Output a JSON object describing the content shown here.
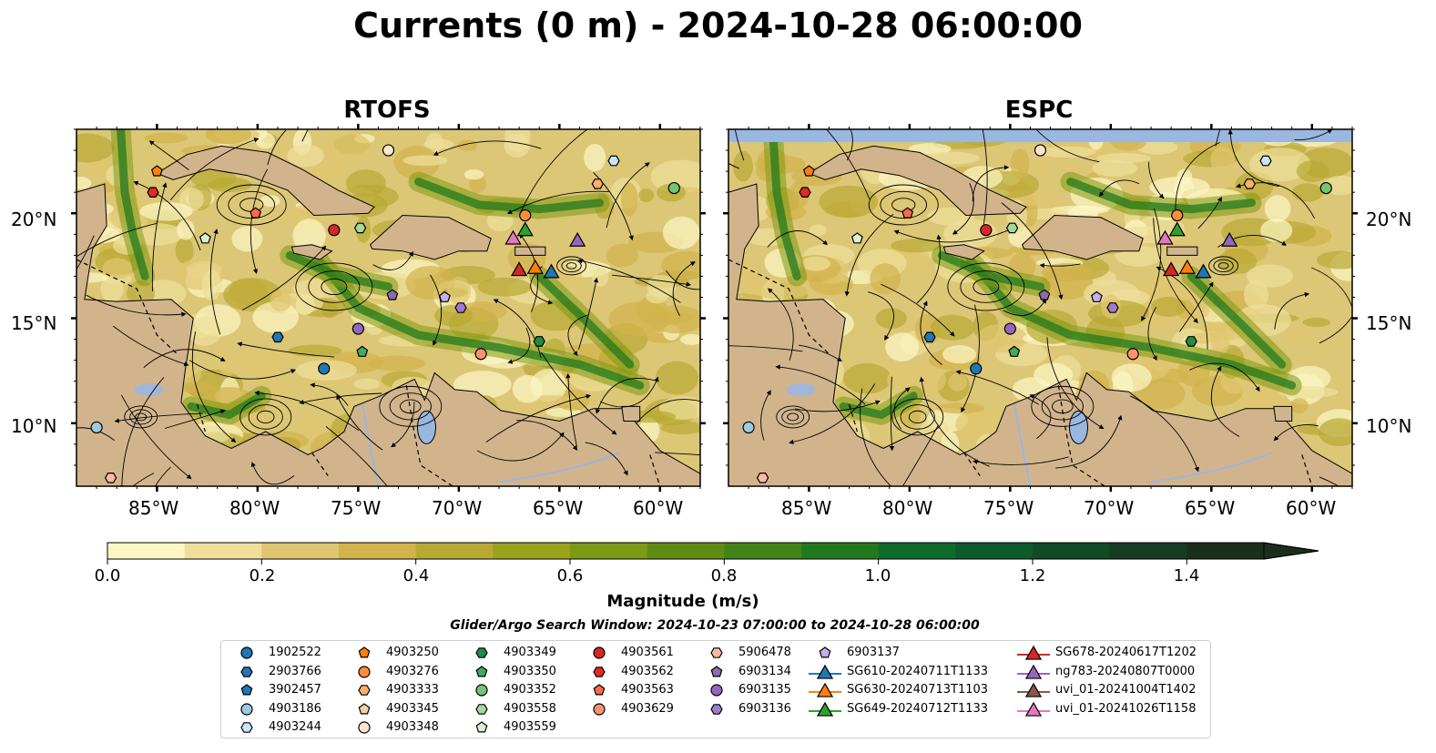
{
  "title": "Currents (0 m) - 2024-10-28 06:00:00",
  "panels": [
    {
      "name": "RTOFS"
    },
    {
      "name": "ESPC"
    }
  ],
  "lat_labels": [
    "20°N",
    "15°N",
    "10°N"
  ],
  "lon_labels": [
    "85°W",
    "80°W",
    "75°W",
    "70°W",
    "65°W",
    "60°W"
  ],
  "colorbar": {
    "label": "Magnitude (m/s)",
    "ticks": [
      "0.0",
      "0.2",
      "0.4",
      "0.6",
      "0.8",
      "1.0",
      "1.2",
      "1.4"
    ],
    "colors": [
      "#fcf6c4",
      "#eee09a",
      "#dfc66f",
      "#d2b34c",
      "#b8a934",
      "#9aa31c",
      "#7e9913",
      "#5f8d13",
      "#418417",
      "#237a1d",
      "#0e6b2b",
      "#0b5a2a",
      "#0f4b25",
      "#163b21",
      "#1b2e1c"
    ]
  },
  "search_window": "Glider/Argo Search Window: 2024-10-23 07:00:00 to 2024-10-28 06:00:00",
  "colors": {
    "land": "#d2b48c",
    "water": "#9ab7e0",
    "ocean_base": "#dcc777"
  },
  "legend": [
    {
      "label": "1902522",
      "marker": "circle",
      "color": "#1f77b4"
    },
    {
      "label": "2903766",
      "marker": "hexagon",
      "color": "#1f77b4"
    },
    {
      "label": "3902457",
      "marker": "pentagon",
      "color": "#1f77b4"
    },
    {
      "label": "4903186",
      "marker": "circle",
      "color": "#9ecae1"
    },
    {
      "label": "4903244",
      "marker": "hexagon",
      "color": "#c6e7fb"
    },
    {
      "label": "4903250",
      "marker": "pentagon",
      "color": "#ff7f0e"
    },
    {
      "label": "4903276",
      "marker": "circle",
      "color": "#fd8d3c"
    },
    {
      "label": "4903333",
      "marker": "hexagon",
      "color": "#fdae6b"
    },
    {
      "label": "4903345",
      "marker": "pentagon",
      "color": "#fdd0a2"
    },
    {
      "label": "4903348",
      "marker": "circle",
      "color": "#fee6ce"
    },
    {
      "label": "4903349",
      "marker": "hexagon",
      "color": "#238b45"
    },
    {
      "label": "4903350",
      "marker": "pentagon",
      "color": "#41ab5d"
    },
    {
      "label": "4903352",
      "marker": "circle",
      "color": "#74c476"
    },
    {
      "label": "4903558",
      "marker": "hexagon",
      "color": "#a1d99b"
    },
    {
      "label": "4903559",
      "marker": "pentagon",
      "color": "#d9f0d3"
    },
    {
      "label": "4903561",
      "marker": "circle",
      "color": "#d62728"
    },
    {
      "label": "4903562",
      "marker": "hexagon",
      "color": "#de2d26"
    },
    {
      "label": "4903563",
      "marker": "pentagon",
      "color": "#fb6a4a"
    },
    {
      "label": "4903629",
      "marker": "circle",
      "color": "#fc9272"
    },
    {
      "label": "5906478",
      "marker": "hexagon",
      "color": "#fcbba1"
    },
    {
      "label": "6903134",
      "marker": "pentagon",
      "color": "#8c6bb1"
    },
    {
      "label": "6903135",
      "marker": "circle",
      "color": "#9467bd"
    },
    {
      "label": "6903136",
      "marker": "hexagon",
      "color": "#9e7cd2"
    },
    {
      "label": "6903137",
      "marker": "pentagon",
      "color": "#c5b0ed"
    },
    {
      "label": "SG610-20240711T1133",
      "marker": "triangle-line",
      "color": "#1f77b4"
    },
    {
      "label": "SG630-20240713T1103",
      "marker": "triangle-line",
      "color": "#ff7f0e"
    },
    {
      "label": "SG649-20240712T1133",
      "marker": "triangle-line",
      "color": "#2ca02c"
    },
    {
      "label": "SG678-20240617T1202",
      "marker": "triangle-line",
      "color": "#d62728"
    },
    {
      "label": "ng783-20240807T0000",
      "marker": "triangle-line",
      "color": "#9467bd"
    },
    {
      "label": "uvi_01-20241004T1402",
      "marker": "triangle-line",
      "color": "#8c564b"
    },
    {
      "label": "uvi_01-20241026T1158",
      "marker": "triangle-line",
      "color": "#e377c2"
    }
  ],
  "map_extent": {
    "lon_min": -89,
    "lon_max": -58,
    "lat_min": 7,
    "lat_max": 24
  },
  "platforms": [
    {
      "id": "1902522",
      "lon": -76.7,
      "lat": 12.6
    },
    {
      "id": "2903766",
      "lon": -79.0,
      "lat": 14.1
    },
    {
      "id": "4903186",
      "lon": -88.0,
      "lat": 9.8
    },
    {
      "id": "4903244",
      "lon": -62.3,
      "lat": 22.5
    },
    {
      "id": "4903250",
      "lon": -85.0,
      "lat": 22.0
    },
    {
      "id": "4903276",
      "lon": -66.7,
      "lat": 19.9
    },
    {
      "id": "4903333",
      "lon": -63.1,
      "lat": 21.4
    },
    {
      "id": "4903348",
      "lon": -73.5,
      "lat": 23.0
    },
    {
      "id": "4903349",
      "lon": -66.0,
      "lat": 13.9
    },
    {
      "id": "4903350",
      "lon": -74.8,
      "lat": 13.4
    },
    {
      "id": "4903352",
      "lon": -59.3,
      "lat": 21.2
    },
    {
      "id": "4903558",
      "lon": -74.9,
      "lat": 19.3
    },
    {
      "id": "4903559",
      "lon": -82.6,
      "lat": 18.8
    },
    {
      "id": "4903561",
      "lon": -76.2,
      "lat": 19.2
    },
    {
      "id": "4903562",
      "lon": -85.2,
      "lat": 21.0
    },
    {
      "id": "4903563",
      "lon": -80.1,
      "lat": 20.0
    },
    {
      "id": "4903629",
      "lon": -68.9,
      "lat": 13.3
    },
    {
      "id": "5906478",
      "lon": -87.3,
      "lat": 7.4
    },
    {
      "id": "6903134",
      "lon": -73.3,
      "lat": 16.1
    },
    {
      "id": "6903135",
      "lon": -75.0,
      "lat": 14.5
    },
    {
      "id": "6903136",
      "lon": -69.9,
      "lat": 15.5
    },
    {
      "id": "6903137",
      "lon": -70.7,
      "lat": 16.0
    },
    {
      "id": "SG610-20240711T1133",
      "lon": -65.4,
      "lat": 17.2
    },
    {
      "id": "SG630-20240713T1103",
      "lon": -66.2,
      "lat": 17.4
    },
    {
      "id": "SG649-20240712T1133",
      "lon": -66.7,
      "lat": 19.2
    },
    {
      "id": "SG678-20240617T1202",
      "lon": -67.0,
      "lat": 17.3
    },
    {
      "id": "ng783-20240807T0000",
      "lon": -64.1,
      "lat": 18.7
    },
    {
      "id": "uvi_01-20241026T1158",
      "lon": -67.3,
      "lat": 18.8
    }
  ]
}
